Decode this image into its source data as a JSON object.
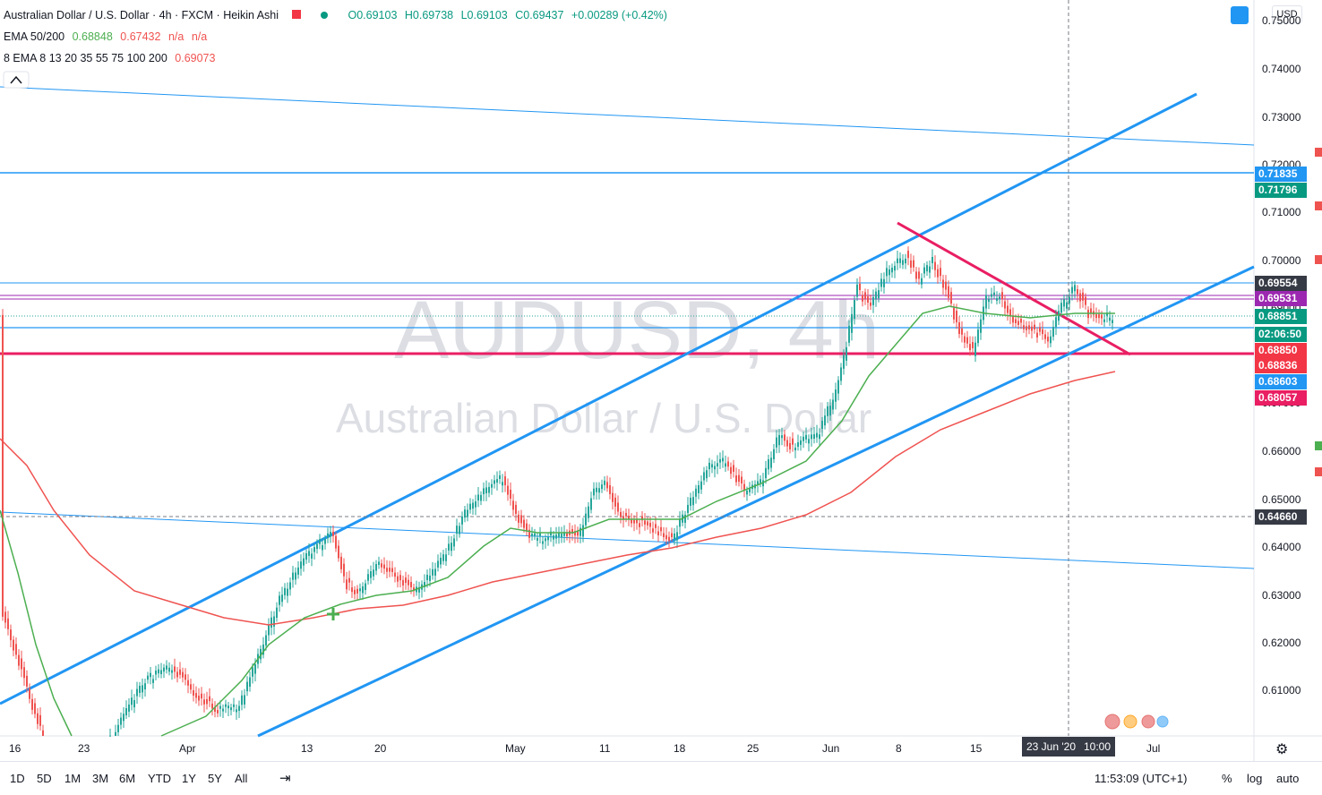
{
  "header": {
    "title": "Australian Dollar / U.S. Dollar · 4h · FXCM · Heikin Ashi",
    "ohlc": {
      "open": "O0.69103",
      "high": "H0.69738",
      "low": "L0.69103",
      "close": "C0.69437",
      "change": "+0.00289 (+0.42%)"
    },
    "ema_50_200": {
      "label": "EMA 50/200",
      "v1": "0.68848",
      "v2": "0.67432",
      "na1": "n/a",
      "na2": "n/a"
    },
    "ema_ribbon": {
      "label": "8 EMA 8 13 20 35 55 75 100 200",
      "value": "0.69073"
    },
    "currency_button": "USD"
  },
  "watermark": {
    "symbol": "AUDUSD, 4h",
    "name": "Australian Dollar / U.S. Dollar"
  },
  "price_axis": {
    "ticks": [
      "0.75000",
      "0.74000",
      "0.73000",
      "0.72000",
      "0.71000",
      "0.70000",
      "0.69000",
      "0.68000",
      "0.67000",
      "0.66000",
      "0.65000",
      "0.64000",
      "0.63000",
      "0.62000",
      "0.61000"
    ],
    "tags": [
      {
        "text": "0.71835",
        "color": "#2196f3"
      },
      {
        "text": "0.71796",
        "color": "#089981"
      },
      {
        "text": "0.69554",
        "color": "#363a45"
      },
      {
        "text": "0.69531",
        "color": "#9c27b0"
      },
      {
        "text": "0.68851",
        "color": "#089981"
      },
      {
        "text": "02:06:50",
        "color": "#089981"
      },
      {
        "text": "0.68850",
        "color": "#f23645"
      },
      {
        "text": "0.68836",
        "color": "#f23645"
      },
      {
        "text": "0.68603",
        "color": "#2196f3"
      },
      {
        "text": "0.68057",
        "color": "#e91e63"
      },
      {
        "text": "0.64660",
        "color": "#363a45"
      }
    ]
  },
  "time_axis": {
    "ticks": [
      "16",
      "23",
      "Apr",
      "13",
      "20",
      "May",
      "11",
      "18",
      "25",
      "Jun",
      "8",
      "15",
      "Jul"
    ],
    "crosshair_date": "23 Jun '20",
    "crosshair_time": "10:00"
  },
  "bottom_bar": {
    "ranges": [
      "1D",
      "5D",
      "1M",
      "3M",
      "6M",
      "YTD",
      "1Y",
      "5Y",
      "All"
    ],
    "clock": "11:53:09 (UTC+1)",
    "percent": "%",
    "log": "log",
    "auto": "auto"
  },
  "colors": {
    "up": "#26a69a",
    "down": "#ef5350",
    "channel": "#2196f3",
    "resistance": "#e91e63",
    "ema50": "#4caf50",
    "ema200": "#ef5350"
  }
}
